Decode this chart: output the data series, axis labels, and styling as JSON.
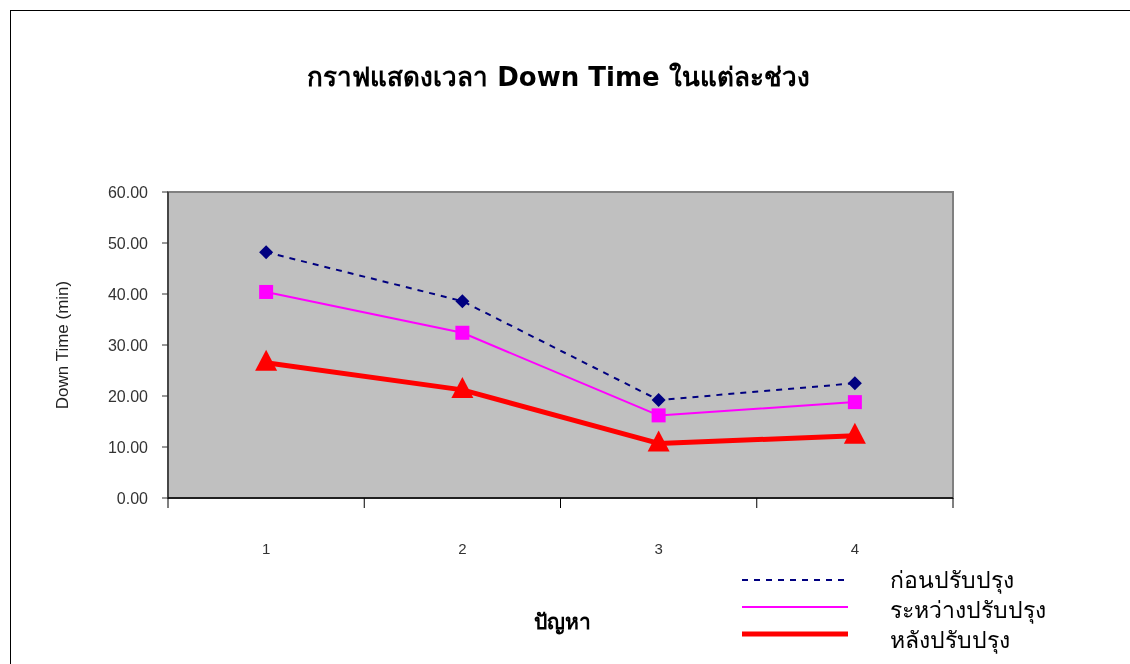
{
  "chart_data": {
    "type": "line",
    "title": "กราฟแสดงเวลา Down Time ในแต่ละช่วง",
    "xlabel": "ปัญหา",
    "ylabel": "Down Time (min)",
    "categories": [
      "1",
      "2",
      "3",
      "4"
    ],
    "series": [
      {
        "name": "ก่อนปรับปรุง",
        "color": "#000080",
        "values": [
          48.2,
          38.6,
          19.2,
          22.5
        ],
        "marker": "diamond",
        "line_style": "dashed"
      },
      {
        "name": "ระหว่างปรับปรุง",
        "color": "#ff00ff",
        "values": [
          40.4,
          32.4,
          16.2,
          18.8
        ],
        "marker": "square",
        "line_style": "solid"
      },
      {
        "name": "หลังปรับปรุง",
        "color": "#ff0000",
        "values": [
          26.5,
          21.2,
          10.7,
          12.2
        ],
        "marker": "triangle",
        "line_style": "solid"
      }
    ],
    "ylim": [
      0,
      60
    ],
    "yticks": [
      {
        "value": 0,
        "label": "0.00"
      },
      {
        "value": 10,
        "label": "10.00"
      },
      {
        "value": 20,
        "label": "20.00"
      },
      {
        "value": 30,
        "label": "30.00"
      },
      {
        "value": 40,
        "label": "40.00"
      },
      {
        "value": 50,
        "label": "50.00"
      },
      {
        "value": 60,
        "label": "60.00"
      }
    ],
    "legend": "bottom right"
  }
}
